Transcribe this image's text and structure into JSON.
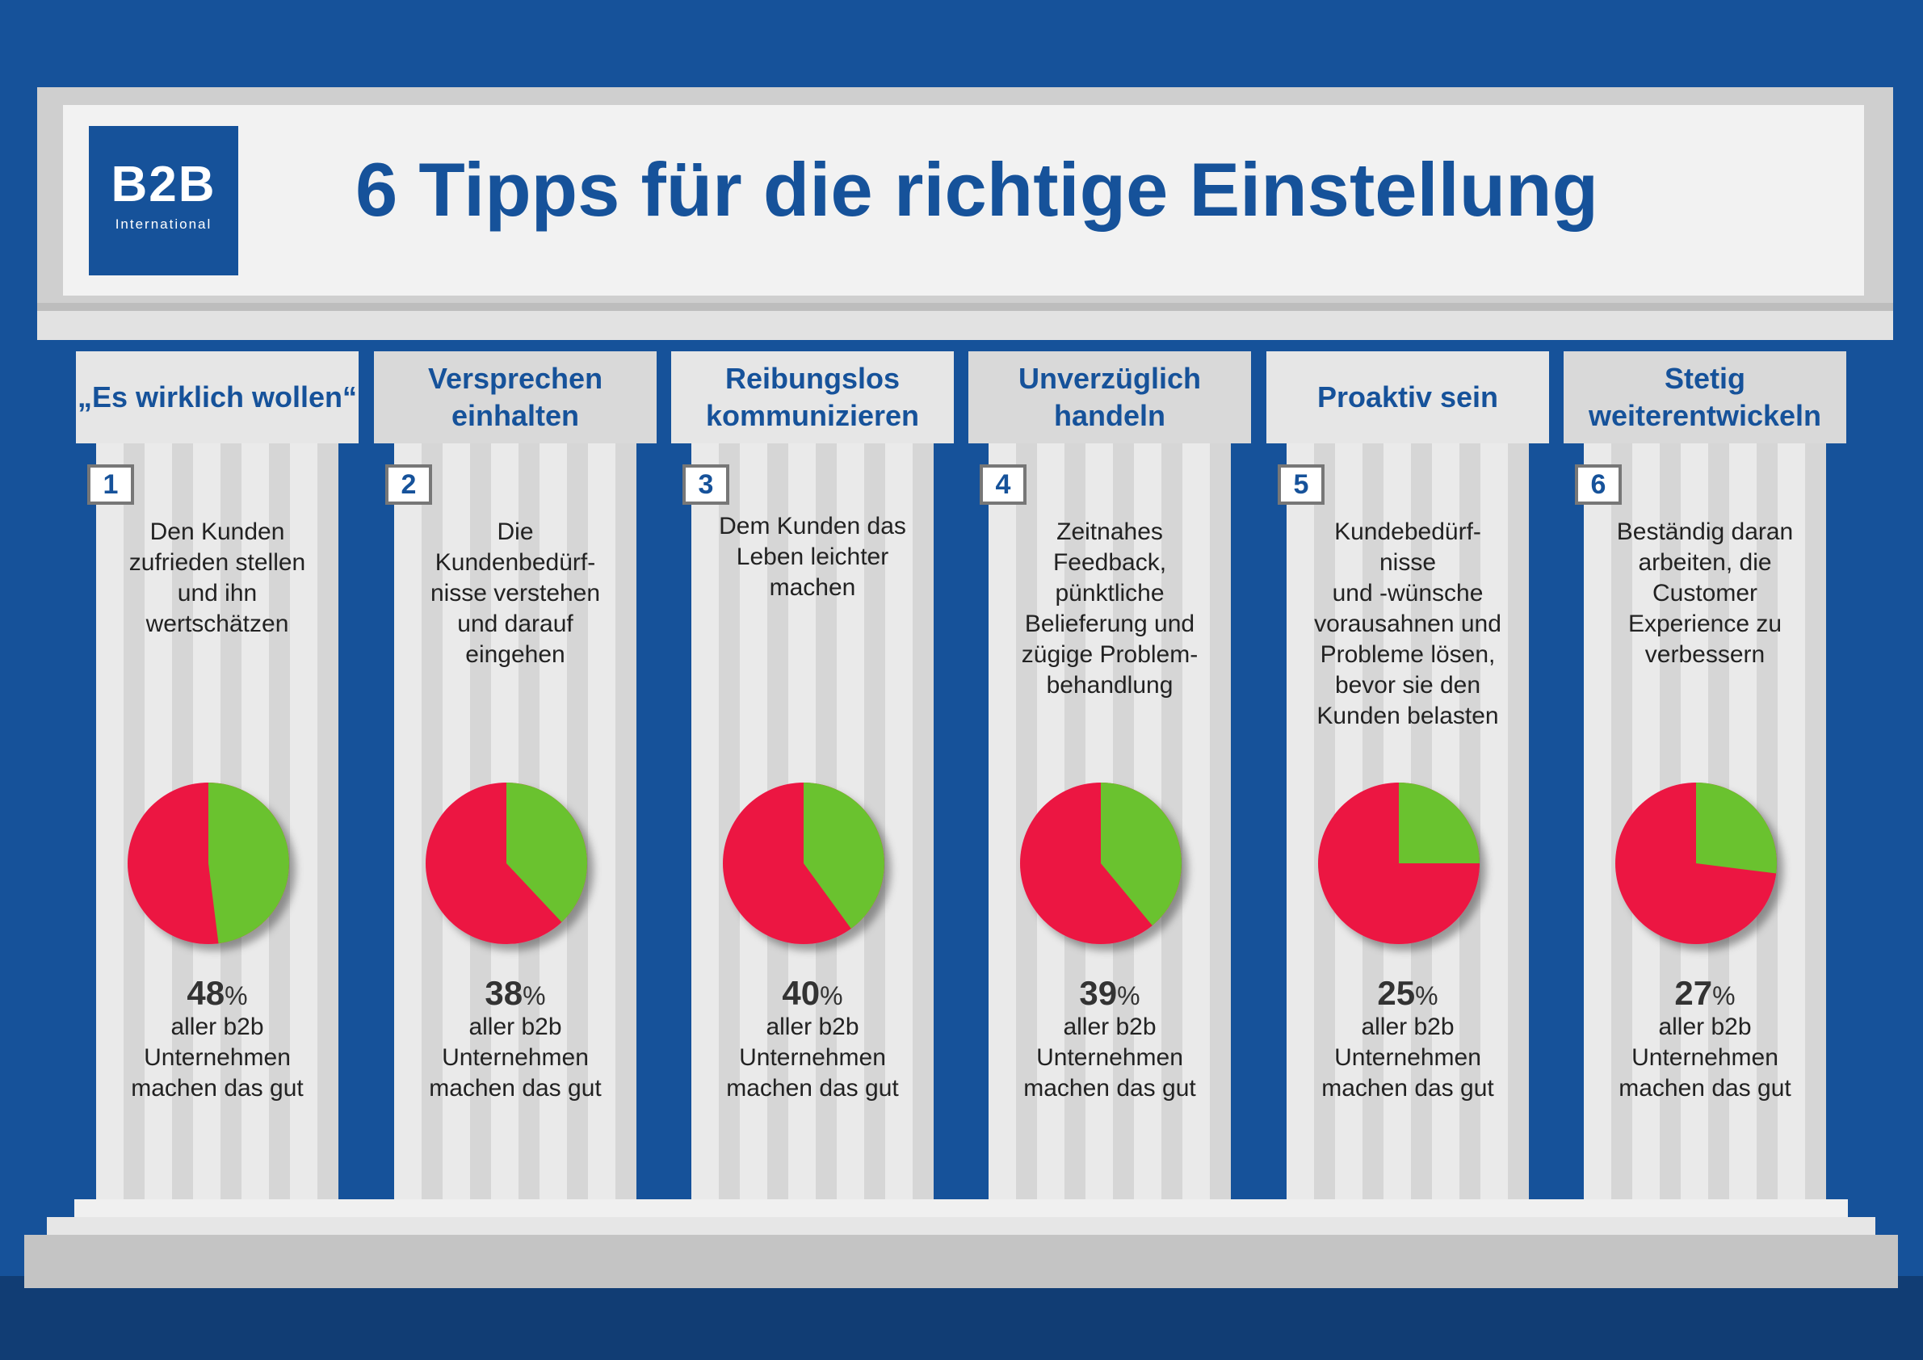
{
  "header": {
    "logo_main": "B2B",
    "logo_sub": "International",
    "title": "6 Tipps für die richtige Einstellung"
  },
  "colors": {
    "positive": "#6ac22f",
    "negative": "#ec1443",
    "brand": "#16529a"
  },
  "columns": [
    {
      "number": "1",
      "heading": "„Es wirklich\nwollen“",
      "description": "Den Kunden\nzufrieden stellen\nund ihn\nwertschätzen",
      "percent_value": "48",
      "percent_sign": "%",
      "caption": "aller b2b\nUnternehmen\nmachen das gut"
    },
    {
      "number": "2",
      "heading": "Versprechen\neinhalten",
      "description": "Die\nKundenbedürf-\nnisse verstehen\nund darauf\neingehen",
      "percent_value": "38",
      "percent_sign": "%",
      "caption": "aller b2b\nUnternehmen\nmachen das gut"
    },
    {
      "number": "3",
      "heading": "Reibungslos\nkommunizieren",
      "description": "Dem Kunden das\nLeben leichter\nmachen",
      "percent_value": "40",
      "percent_sign": "%",
      "caption": "aller b2b\nUnternehmen\nmachen das gut"
    },
    {
      "number": "4",
      "heading": "Unverzüglich\nhandeln",
      "description": "Zeitnahes\nFeedback,\npünktliche\nBelieferung und\nzügige Problem-\nbehandlung",
      "percent_value": "39",
      "percent_sign": "%",
      "caption": "aller b2b\nUnternehmen\nmachen das gut"
    },
    {
      "number": "5",
      "heading": "Proaktiv\nsein",
      "description": "Kundebedürf-\nnisse\nund -wünsche\nvorausahnen und\nProbleme lösen,\nbevor sie den\nKunden belasten",
      "percent_value": "25",
      "percent_sign": "%",
      "caption": "aller b2b\nUnternehmen\nmachen das gut"
    },
    {
      "number": "6",
      "heading": "Stetig\nweiterentwickeln",
      "description": "Beständig daran\narbeiten, die\nCustomer\nExperience zu\nverbessern",
      "percent_value": "27",
      "percent_sign": "%",
      "caption": "aller b2b\nUnternehmen\nmachen das gut"
    }
  ],
  "chart_data": {
    "type": "pie",
    "categories": [
      "„Es wirklich wollen“",
      "Versprechen einhalten",
      "Reibungslos kommunizieren",
      "Unverzüglich handeln",
      "Proaktiv sein",
      "Stetig weiterentwickeln"
    ],
    "values": [
      48,
      38,
      40,
      39,
      25,
      27
    ],
    "unit": "%"
  }
}
